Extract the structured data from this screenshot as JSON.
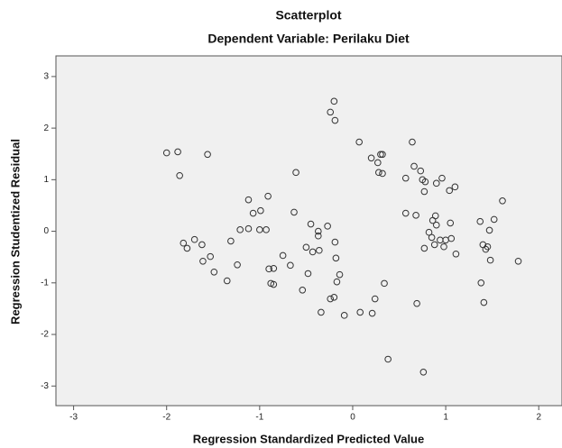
{
  "chart_data": {
    "type": "scatter",
    "title": "Scatterplot",
    "subtitle": "Dependent Variable: Perilaku Diet",
    "x_label": "Regression Standardized Predicted Value",
    "y_label": "Regression Studentized Residual",
    "color": "#333333",
    "background": "#f0f0f0",
    "xlim": [
      -3.19,
      2.25
    ],
    "ylim": [
      -3.38,
      3.4
    ],
    "xticks": [
      -3,
      -2,
      -1,
      0,
      1,
      2
    ],
    "yticks": [
      -3,
      -2,
      -1,
      0,
      1,
      2,
      3
    ],
    "x": [
      -2.0,
      -1.88,
      -1.86,
      -1.56,
      -1.82,
      -1.78,
      -1.7,
      -1.62,
      -1.61,
      -1.53,
      -1.49,
      -1.35,
      -1.31,
      -1.24,
      -1.21,
      -1.12,
      -1.12,
      -1.07,
      -0.99,
      -1.0,
      -0.93,
      -0.91,
      -0.9,
      -0.85,
      -0.88,
      -0.85,
      -0.75,
      -0.67,
      -0.63,
      -0.61,
      -0.54,
      -0.5,
      -0.48,
      -0.45,
      -0.43,
      -0.37,
      -0.37,
      -0.36,
      -0.34,
      -0.27,
      -0.24,
      -0.24,
      -0.2,
      -0.19,
      -0.19,
      -0.18,
      -0.2,
      -0.17,
      -0.14,
      -0.09,
      0.07,
      0.08,
      0.2,
      0.21,
      0.24,
      0.27,
      0.3,
      0.32,
      0.28,
      0.32,
      0.34,
      0.38,
      0.57,
      0.57,
      0.64,
      0.66,
      0.68,
      0.69,
      0.73,
      0.75,
      0.77,
      0.78,
      0.77,
      0.76,
      0.82,
      0.85,
      0.86,
      0.89,
      0.9,
      0.88,
      0.9,
      0.94,
      0.96,
      0.98,
      1.0,
      1.04,
      1.05,
      1.06,
      1.1,
      1.11,
      1.37,
      1.38,
      1.4,
      1.43,
      1.45,
      1.41,
      1.48,
      1.47,
      1.52,
      1.61,
      1.78
    ],
    "values": [
      1.52,
      1.54,
      1.08,
      1.49,
      -0.23,
      -0.33,
      -0.16,
      -0.26,
      -0.58,
      -0.49,
      -0.79,
      -0.96,
      -0.19,
      -0.65,
      0.03,
      0.61,
      0.05,
      0.35,
      0.4,
      0.03,
      0.03,
      0.68,
      -0.73,
      -0.72,
      -1.01,
      -1.03,
      -0.47,
      -0.66,
      0.37,
      1.14,
      -1.14,
      -0.31,
      -0.82,
      0.14,
      -0.4,
      0.0,
      -0.09,
      -0.37,
      -1.57,
      0.1,
      -1.31,
      2.31,
      2.52,
      2.15,
      -0.21,
      -0.52,
      -1.28,
      -0.98,
      -0.84,
      -1.63,
      1.73,
      -1.57,
      1.42,
      -1.59,
      -1.31,
      1.33,
      1.49,
      1.49,
      1.14,
      1.12,
      -1.01,
      -2.48,
      0.35,
      1.03,
      1.73,
      1.26,
      0.31,
      -1.4,
      1.17,
      1.0,
      0.77,
      0.96,
      -0.33,
      -2.73,
      -0.02,
      -0.12,
      0.21,
      0.3,
      0.12,
      -0.26,
      0.93,
      -0.17,
      1.03,
      -0.3,
      -0.17,
      0.79,
      0.16,
      -0.14,
      0.86,
      -0.44,
      0.19,
      -1.0,
      -0.26,
      -0.35,
      -0.3,
      -1.38,
      -0.56,
      0.02,
      0.23,
      0.59,
      -0.58
    ]
  }
}
